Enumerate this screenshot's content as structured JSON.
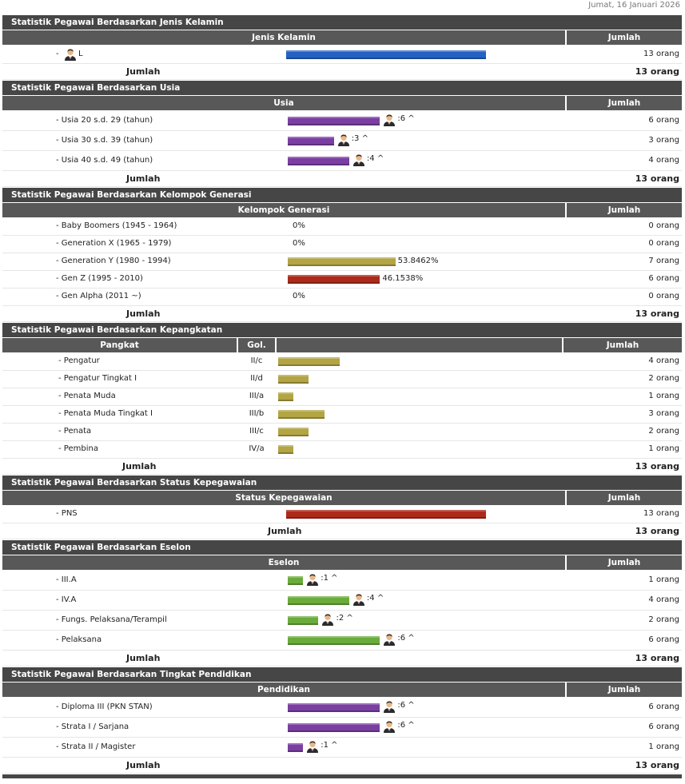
{
  "date": "Jumat, 16 Januari 2026",
  "sections": [
    {
      "title": "Statistik Pegawai Berdasarkan Jenis Kelamin",
      "columns": [
        "Jenis Kelamin",
        "Jumlah"
      ],
      "color": "#2461c2",
      "icon": "before-label",
      "rows": [
        {
          "prefix": "-",
          "label": "L",
          "value": 13,
          "jumlah": "13 orang"
        }
      ],
      "total_label": "Jumlah",
      "total": "13 orang"
    },
    {
      "title": "Statistik Pegawai Berdasarkan Usia",
      "columns": [
        "Usia",
        "Jumlah"
      ],
      "color": "#7b3fa3",
      "icon": "after-bar",
      "rows": [
        {
          "label": "- Usia 20 s.d. 29 (tahun)",
          "value": 6,
          "note": ":6 ^",
          "jumlah": "6 orang"
        },
        {
          "label": "- Usia 30 s.d. 39 (tahun)",
          "value": 3,
          "note": ":3 ^",
          "jumlah": "3 orang"
        },
        {
          "label": "- Usia 40 s.d. 49 (tahun)",
          "value": 4,
          "note": ":4 ^",
          "jumlah": "4 orang"
        }
      ],
      "total_label": "Jumlah",
      "total": "13 orang"
    },
    {
      "title": "Statistik Pegawai Berdasarkan Kelompok Generasi",
      "columns": [
        "Kelompok Generasi",
        "Jumlah"
      ],
      "color": "#b3a444",
      "rows": [
        {
          "label": "- Baby Boomers (1945 - 1964)",
          "value": 0,
          "note": "0%",
          "jumlah": "0 orang"
        },
        {
          "label": "- Generation X (1965 - 1979)",
          "value": 0,
          "note": "0%",
          "jumlah": "0 orang"
        },
        {
          "label": "- Generation Y (1980 - 1994)",
          "value": 7,
          "note": "53.8462%",
          "jumlah": "7 orang",
          "color": "#b3a444"
        },
        {
          "label": "- Gen Z (1995 - 2010)",
          "value": 6,
          "note": "46.1538%",
          "jumlah": "6 orang",
          "color": "#ad2a1a"
        },
        {
          "label": "- Gen Alpha (2011 ~)",
          "value": 0,
          "note": "0%",
          "jumlah": "0 orang"
        }
      ],
      "total_label": "Jumlah",
      "total": "13 orang"
    },
    {
      "title": "Statistik Pegawai Berdasarkan Kepangkatan",
      "columns": [
        "Pangkat",
        "Gol.",
        "Jumlah"
      ],
      "color": "#b3a444",
      "rows": [
        {
          "label": "- Pengatur",
          "gol": "II/c",
          "value": 4,
          "jumlah": "4 orang"
        },
        {
          "label": "- Pengatur Tingkat I",
          "gol": "II/d",
          "value": 2,
          "jumlah": "2 orang"
        },
        {
          "label": "- Penata Muda",
          "gol": "III/a",
          "value": 1,
          "jumlah": "1 orang"
        },
        {
          "label": "- Penata Muda Tingkat I",
          "gol": "III/b",
          "value": 3,
          "jumlah": "3 orang"
        },
        {
          "label": "- Penata",
          "gol": "III/c",
          "value": 2,
          "jumlah": "2 orang"
        },
        {
          "label": "- Pembina",
          "gol": "IV/a",
          "value": 1,
          "jumlah": "1 orang"
        }
      ],
      "total_label": "Jumlah",
      "total": "13 orang"
    },
    {
      "title": "Statistik Pegawai Berdasarkan Status Kepegawaian",
      "columns": [
        "Status Kepegawaian",
        "Jumlah"
      ],
      "color": "#ad2a1a",
      "rows": [
        {
          "label": "- PNS",
          "value": 13,
          "jumlah": "13 orang"
        }
      ],
      "total_label": "Jumlah",
      "total": "13 orang"
    },
    {
      "title": "Statistik Pegawai Berdasarkan Eselon",
      "columns": [
        "Eselon",
        "Jumlah"
      ],
      "color": "#6aab3b",
      "icon": "after-bar",
      "rows": [
        {
          "label": "- III.A",
          "value": 1,
          "note": ":1 ^",
          "jumlah": "1 orang"
        },
        {
          "label": "- IV.A",
          "value": 4,
          "note": ":4 ^",
          "jumlah": "4 orang"
        },
        {
          "label": "- Fungs. Pelaksana/Terampil",
          "value": 2,
          "note": ":2 ^",
          "jumlah": "2 orang"
        },
        {
          "label": "- Pelaksana",
          "value": 6,
          "note": ":6 ^",
          "jumlah": "6 orang"
        }
      ],
      "total_label": "Jumlah",
      "total": "13 orang"
    },
    {
      "title": "Statistik Pegawai Berdasarkan Tingkat Pendidikan",
      "columns": [
        "Pendidikan",
        "Jumlah"
      ],
      "color": "#7b3fa3",
      "icon": "after-bar",
      "rows": [
        {
          "label": "- Diploma III (PKN STAN)",
          "value": 6,
          "note": ":6 ^",
          "jumlah": "6 orang"
        },
        {
          "label": "- Strata I / Sarjana",
          "value": 6,
          "note": ":6 ^",
          "jumlah": "6 orang"
        },
        {
          "label": "- Strata II / Magister",
          "value": 1,
          "note": ":1 ^",
          "jumlah": "1 orang"
        }
      ],
      "total_label": "Jumlah",
      "total": "13 orang"
    }
  ]
}
